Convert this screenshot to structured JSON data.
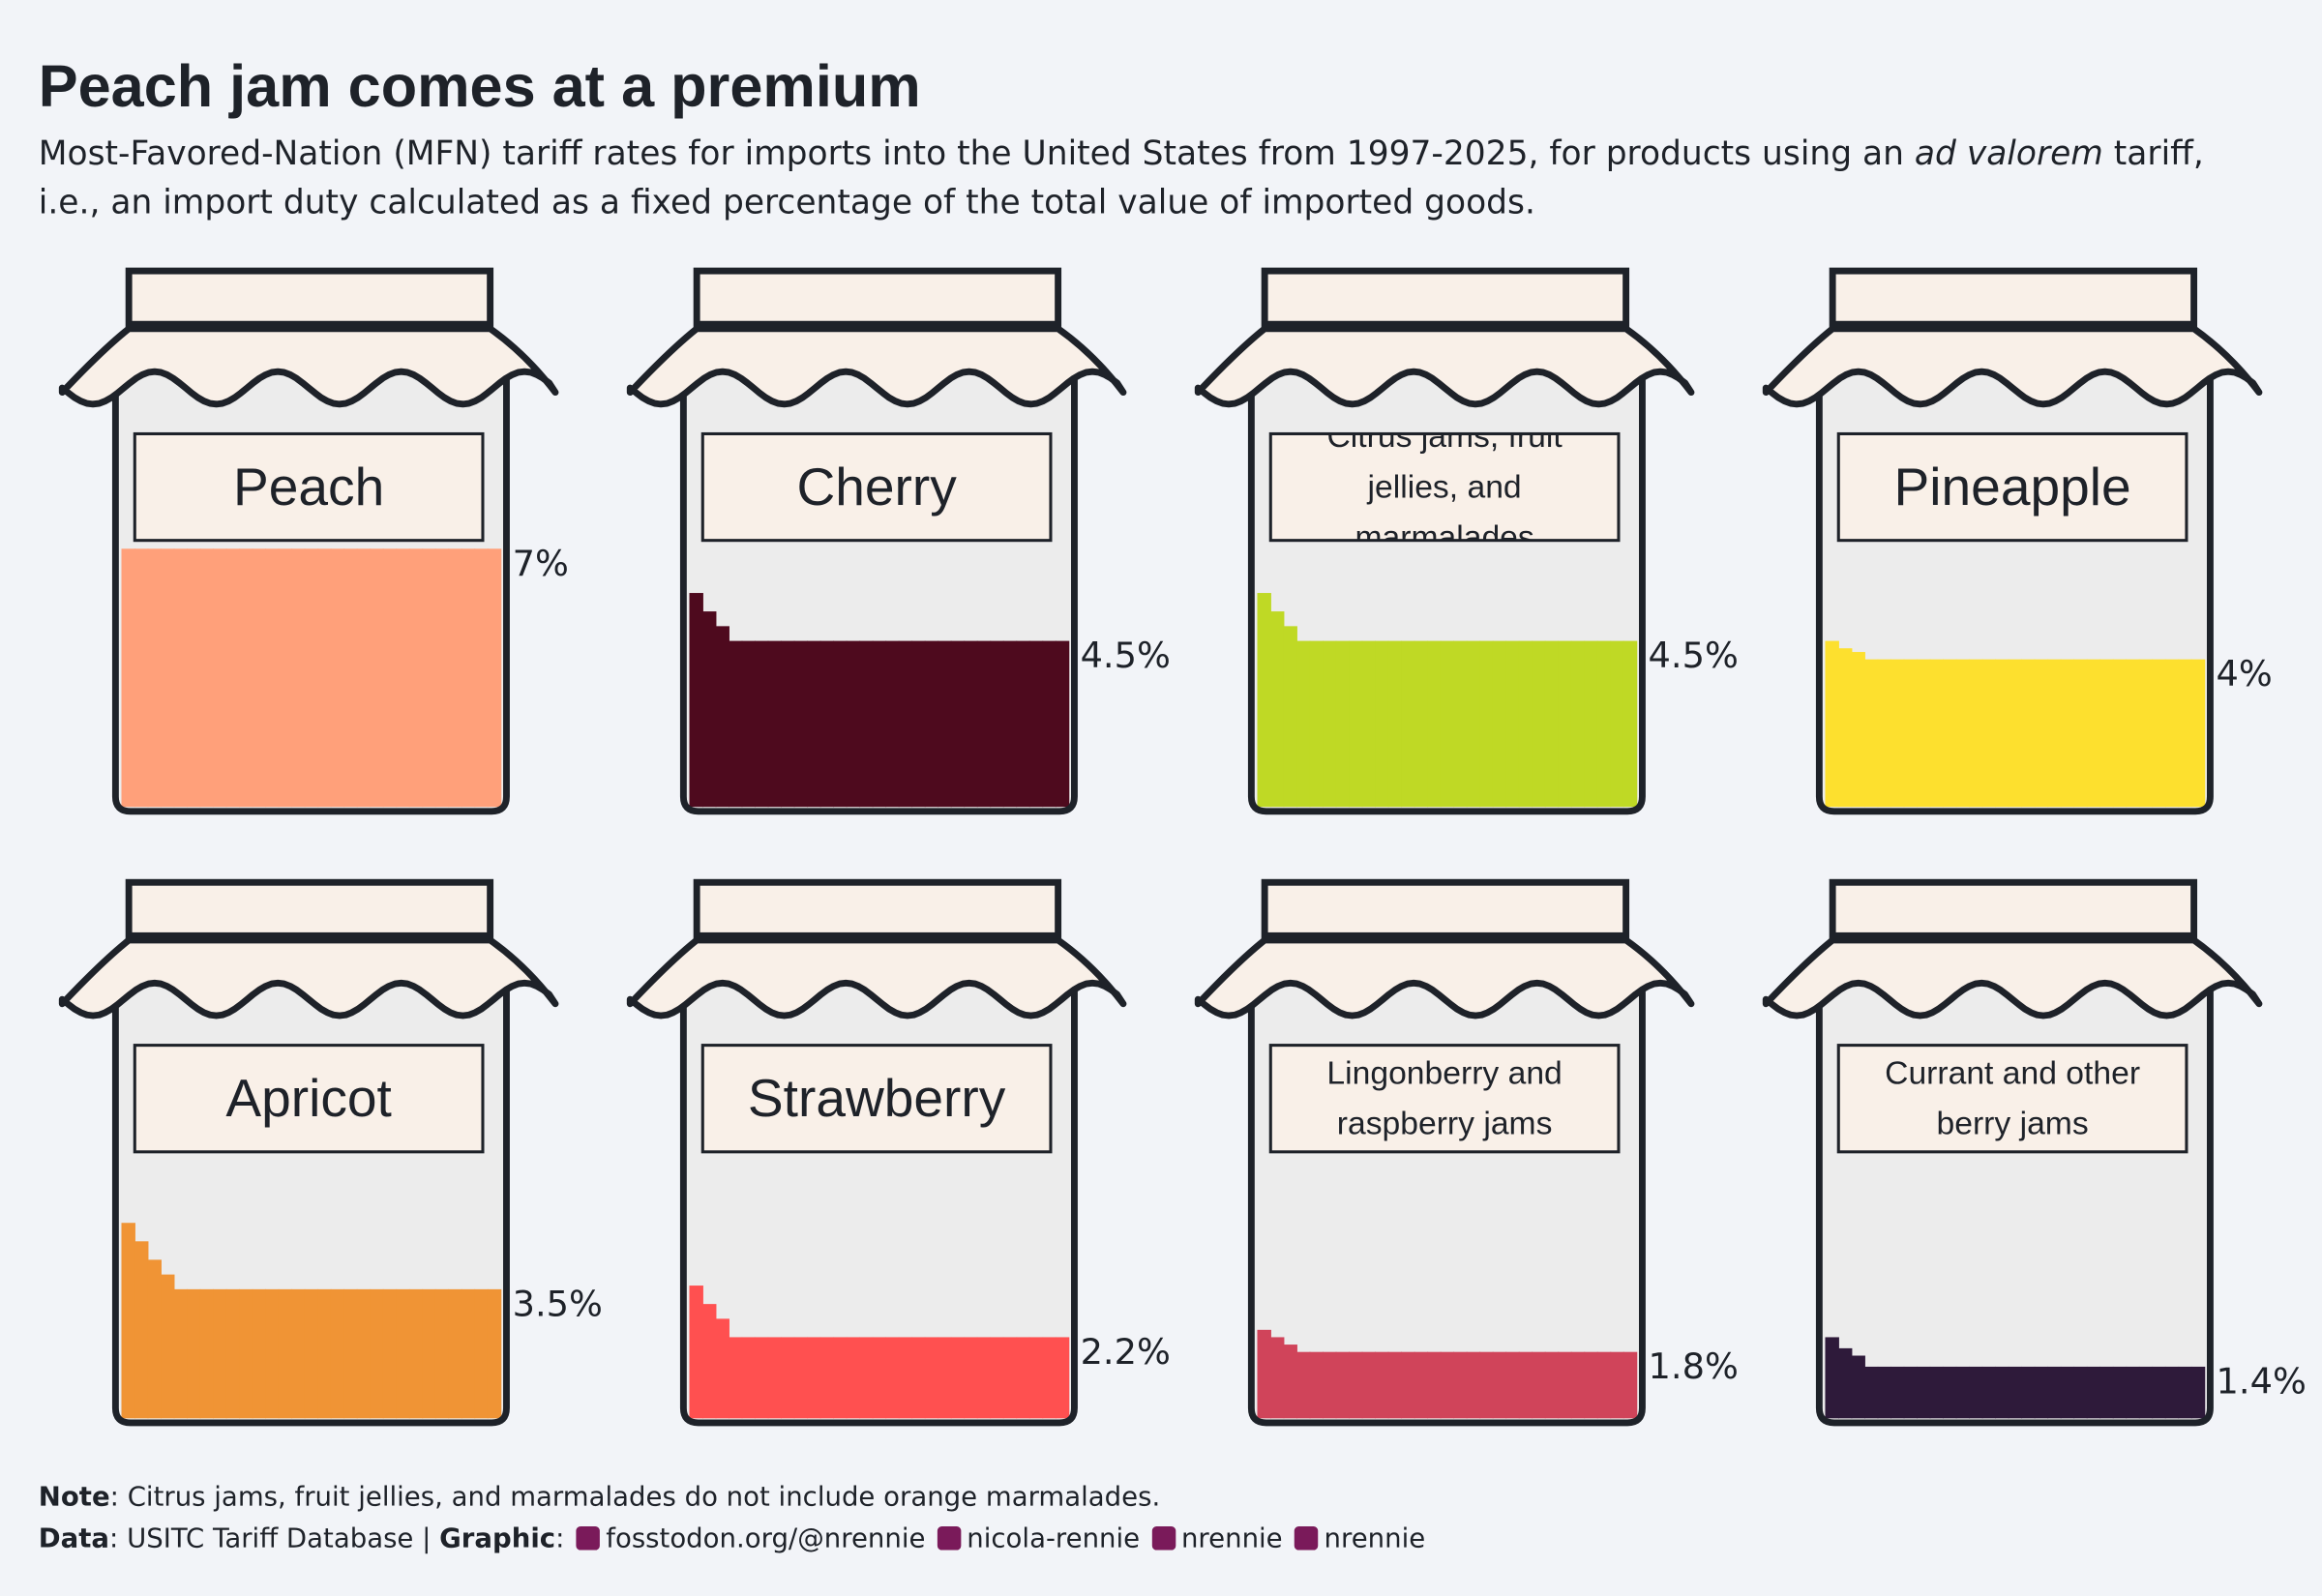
{
  "chart_data": {
    "type": "jar",
    "title": "Peach jam comes at a premium",
    "subtitle": [
      "Most-Favored-Nation (MFN) tariff rates for imports into the United States from 1997-2025, for products using an ",
      "ad valorem",
      " tariff, i.e., an import duty calculated as a fixed percentage of the total value of imported goods."
    ],
    "ylim": [
      0,
      11.2
    ],
    "series": [
      {
        "name": "Peach",
        "color": "#FFA07A",
        "values": [
          7,
          7,
          7,
          7,
          7,
          7,
          7,
          7,
          7,
          7,
          7,
          7,
          7,
          7,
          7,
          7,
          7,
          7,
          7,
          7,
          7,
          7,
          7,
          7,
          7,
          7,
          7,
          7,
          7
        ],
        "value_labels": [
          null,
          null,
          null,
          null,
          null,
          null,
          null,
          null,
          null,
          null,
          null,
          null,
          null,
          null,
          null,
          null,
          null,
          null,
          null,
          null,
          null,
          null,
          null,
          null,
          null,
          null,
          null,
          null,
          "7%"
        ]
      },
      {
        "name": "Cherry",
        "color": "#4E0A1E",
        "values": [
          5.8,
          5.3,
          4.9,
          4.5,
          4.5,
          4.5,
          4.5,
          4.5,
          4.5,
          4.5,
          4.5,
          4.5,
          4.5,
          4.5,
          4.5,
          4.5,
          4.5,
          4.5,
          4.5,
          4.5,
          4.5,
          4.5,
          4.5,
          4.5,
          4.5,
          4.5,
          4.5,
          4.5,
          4.5
        ],
        "value_labels": [
          null,
          null,
          null,
          null,
          null,
          null,
          null,
          null,
          null,
          null,
          null,
          null,
          null,
          null,
          null,
          null,
          null,
          null,
          null,
          null,
          null,
          null,
          null,
          null,
          null,
          null,
          null,
          null,
          "4.5%"
        ]
      },
      {
        "name": "Citrus jams, fruit jellies, and marmalades",
        "color": "#BFD925",
        "values": [
          5.8,
          5.3,
          4.9,
          4.5,
          4.5,
          4.5,
          4.5,
          4.5,
          4.5,
          4.5,
          4.5,
          4.5,
          4.5,
          4.5,
          4.5,
          4.5,
          4.5,
          4.5,
          4.5,
          4.5,
          4.5,
          4.5,
          4.5,
          4.5,
          4.5,
          4.5,
          4.5,
          4.5,
          4.5
        ],
        "value_labels": [
          null,
          null,
          null,
          null,
          null,
          null,
          null,
          null,
          null,
          null,
          null,
          null,
          null,
          null,
          null,
          null,
          null,
          null,
          null,
          null,
          null,
          null,
          null,
          null,
          null,
          null,
          null,
          null,
          "4.5%"
        ]
      },
      {
        "name": "Pineapple",
        "color": "#FDE02E",
        "values": [
          4.5,
          4.3,
          4.2,
          4,
          4,
          4,
          4,
          4,
          4,
          4,
          4,
          4,
          4,
          4,
          4,
          4,
          4,
          4,
          4,
          4,
          4,
          4,
          4,
          4,
          4,
          4,
          4,
          4,
          4
        ],
        "value_labels": [
          null,
          null,
          null,
          null,
          null,
          null,
          null,
          null,
          null,
          null,
          null,
          null,
          null,
          null,
          null,
          null,
          null,
          null,
          null,
          null,
          null,
          null,
          null,
          null,
          null,
          null,
          null,
          null,
          "4%"
        ]
      },
      {
        "name": "Apricot",
        "color": "#F09435",
        "values": [
          5.3,
          4.8,
          4.3,
          3.9,
          3.5,
          3.5,
          3.5,
          3.5,
          3.5,
          3.5,
          3.5,
          3.5,
          3.5,
          3.5,
          3.5,
          3.5,
          3.5,
          3.5,
          3.5,
          3.5,
          3.5,
          3.5,
          3.5,
          3.5,
          3.5,
          3.5,
          3.5,
          3.5,
          3.5
        ],
        "value_labels": [
          null,
          null,
          null,
          null,
          null,
          null,
          null,
          null,
          null,
          null,
          null,
          null,
          null,
          null,
          null,
          null,
          null,
          null,
          null,
          null,
          null,
          null,
          null,
          null,
          null,
          null,
          null,
          null,
          "3.5%"
        ]
      },
      {
        "name": "Strawberry",
        "color": "#FF5050",
        "values": [
          3.6,
          3.1,
          2.7,
          2.2,
          2.2,
          2.2,
          2.2,
          2.2,
          2.2,
          2.2,
          2.2,
          2.2,
          2.2,
          2.2,
          2.2,
          2.2,
          2.2,
          2.2,
          2.2,
          2.2,
          2.2,
          2.2,
          2.2,
          2.2,
          2.2,
          2.2,
          2.2,
          2.2,
          2.2
        ],
        "value_labels": [
          null,
          null,
          null,
          null,
          null,
          null,
          null,
          null,
          null,
          null,
          null,
          null,
          null,
          null,
          null,
          null,
          null,
          null,
          null,
          null,
          null,
          null,
          null,
          null,
          null,
          null,
          null,
          null,
          "2.2%"
        ]
      },
      {
        "name": "Lingonberry and raspberry jams",
        "color": "#D0445A",
        "values": [
          2.4,
          2.2,
          2,
          1.8,
          1.8,
          1.8,
          1.8,
          1.8,
          1.8,
          1.8,
          1.8,
          1.8,
          1.8,
          1.8,
          1.8,
          1.8,
          1.8,
          1.8,
          1.8,
          1.8,
          1.8,
          1.8,
          1.8,
          1.8,
          1.8,
          1.8,
          1.8,
          1.8,
          1.8
        ],
        "value_labels": [
          null,
          null,
          null,
          null,
          null,
          null,
          null,
          null,
          null,
          null,
          null,
          null,
          null,
          null,
          null,
          null,
          null,
          null,
          null,
          null,
          null,
          null,
          null,
          null,
          null,
          null,
          null,
          null,
          "1.8%"
        ]
      },
      {
        "name": "Currant and other berry jams",
        "color": "#2E1A3A",
        "values": [
          2.2,
          1.9,
          1.7,
          1.4,
          1.4,
          1.4,
          1.4,
          1.4,
          1.4,
          1.4,
          1.4,
          1.4,
          1.4,
          1.4,
          1.4,
          1.4,
          1.4,
          1.4,
          1.4,
          1.4,
          1.4,
          1.4,
          1.4,
          1.4,
          1.4,
          1.4,
          1.4,
          1.4,
          1.4
        ],
        "value_labels": [
          null,
          null,
          null,
          null,
          null,
          null,
          null,
          null,
          null,
          null,
          null,
          null,
          null,
          null,
          null,
          null,
          null,
          null,
          null,
          null,
          null,
          null,
          null,
          null,
          null,
          null,
          null,
          null,
          "1.4%"
        ]
      }
    ]
  },
  "caption": {
    "note_label": "Note",
    "note": ": Citrus jams, fruit jellies, and marmalades do not include orange marmalades.",
    "data_label": "Data",
    "data": ": USITC Tariff Database | ",
    "graphic_label": "Graphic",
    "graphic": ":",
    "links": [
      "fosstodon.org/@nrennie",
      "nicola-rennie",
      "nrennie",
      "nrennie"
    ]
  }
}
